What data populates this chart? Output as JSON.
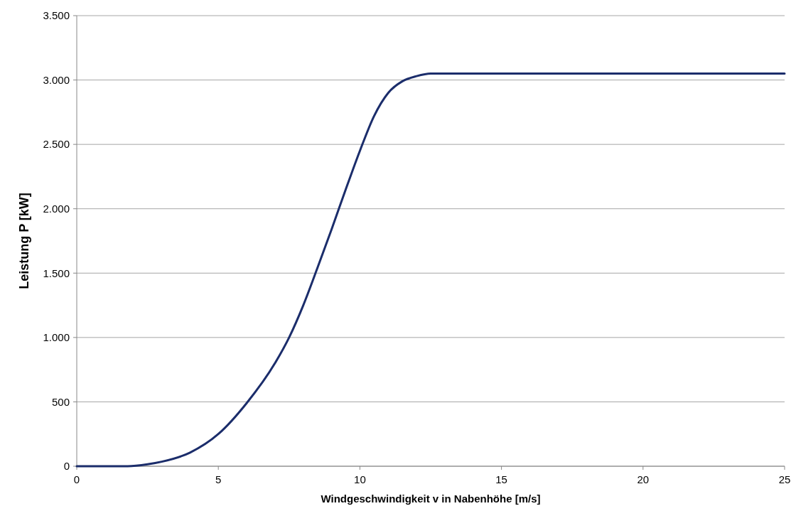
{
  "chart_data": {
    "type": "line",
    "xlabel": "Windgeschwindigkeit v in Nabenhöhe [m/s]",
    "ylabel": "Leistung P [kW]",
    "x": [
      0,
      1,
      1.8,
      2.5,
      3,
      4,
      5,
      6,
      7,
      7.5,
      8,
      8.5,
      9,
      9.5,
      10,
      10.5,
      11,
      11.5,
      12,
      12.5,
      13,
      14,
      25
    ],
    "series": [
      {
        "color": "#1b2d6b",
        "values": [
          0,
          0,
          0,
          15,
          35,
          106,
          250,
          490,
          800,
          1000,
          1250,
          1540,
          1840,
          2150,
          2450,
          2720,
          2900,
          2990,
          3030,
          3050,
          3050,
          3050,
          3050
        ]
      }
    ],
    "xlim": [
      0,
      25
    ],
    "xticks": [
      0,
      5,
      10,
      15,
      20,
      25
    ],
    "ylim": [
      0,
      3500
    ],
    "yticks": [
      {
        "value": 0,
        "label": "0"
      },
      {
        "value": 500,
        "label": "500"
      },
      {
        "value": 1000,
        "label": "1.000"
      },
      {
        "value": 1500,
        "label": "1.500"
      },
      {
        "value": 2000,
        "label": "2.000"
      },
      {
        "value": 2500,
        "label": "2.500"
      },
      {
        "value": 3000,
        "label": "3.000"
      },
      {
        "value": 3500,
        "label": "3.500"
      }
    ],
    "grid": "y",
    "marker": "none",
    "line_style": "solid"
  }
}
